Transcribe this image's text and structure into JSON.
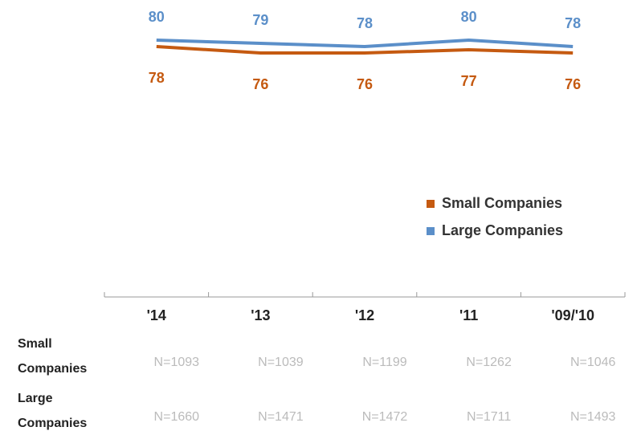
{
  "chart_data": {
    "type": "line",
    "categories": [
      "'14",
      "'13",
      "'12",
      "'11",
      "'09/'10"
    ],
    "series": [
      {
        "name": "Small Companies",
        "color": "#c55a11",
        "values": [
          78,
          76,
          76,
          77,
          76
        ]
      },
      {
        "name": "Large Companies",
        "color": "#5b8fc9",
        "values": [
          80,
          79,
          78,
          80,
          78
        ]
      }
    ],
    "ylim": [
      0,
      90
    ],
    "table": {
      "rows": [
        {
          "label": "Small Companies",
          "cells": [
            "N=1093",
            "N=1039",
            "N=1199",
            "N=1262",
            "N=1046"
          ]
        },
        {
          "label": "Large Companies",
          "cells": [
            "N=1660",
            "N=1471",
            "N=1472",
            "N=1711",
            "N=1493"
          ]
        }
      ]
    }
  }
}
